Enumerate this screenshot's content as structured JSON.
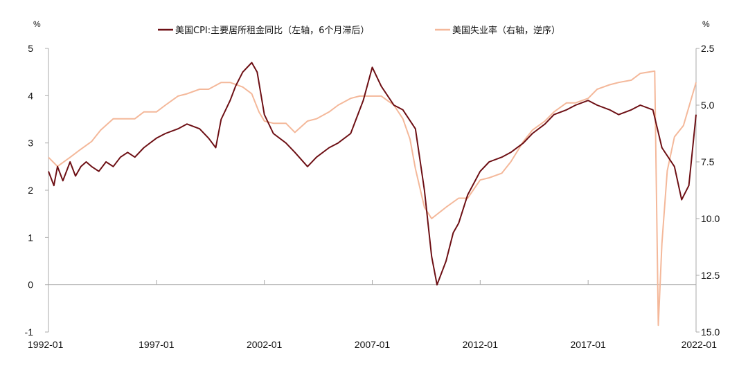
{
  "chart_data": {
    "type": "line",
    "left_unit": "%",
    "right_unit": "%",
    "x_tick_labels": [
      "1992-01",
      "1997-01",
      "2002-01",
      "2007-01",
      "2012-01",
      "2017-01",
      "2022-01"
    ],
    "x_range": [
      1992.0,
      2022.0
    ],
    "ylim_left": [
      -1,
      5
    ],
    "left_ticks": [
      "-1",
      "0",
      "1",
      "2",
      "3",
      "4",
      "5"
    ],
    "ylim_right": [
      2.5,
      15.0
    ],
    "right_axis_inverted": true,
    "right_ticks": [
      "2.5",
      "5.0",
      "7.5",
      "10.0",
      "12.5",
      "15.0"
    ],
    "grid": false,
    "legend_position": "top-center",
    "series": [
      {
        "name": "美国CPI:主要居所租金同比（左轴，6个月滞后）",
        "axis": "left",
        "color": "#6d0f14",
        "x": [
          "1992-01",
          "1992-04",
          "1992-06",
          "1992-09",
          "1993-01",
          "1993-04",
          "1993-07",
          "1993-10",
          "1994-01",
          "1994-05",
          "1994-09",
          "1995-01",
          "1995-05",
          "1995-09",
          "1996-01",
          "1996-06",
          "1997-01",
          "1997-06",
          "1998-01",
          "1998-06",
          "1999-01",
          "1999-06",
          "1999-10",
          "2000-01",
          "2000-06",
          "2000-09",
          "2001-01",
          "2001-06",
          "2001-09",
          "2002-01",
          "2002-06",
          "2003-01",
          "2003-06",
          "2004-01",
          "2004-06",
          "2005-01",
          "2005-06",
          "2006-01",
          "2006-04",
          "2006-08",
          "2007-01",
          "2007-06",
          "2008-01",
          "2008-06",
          "2009-01",
          "2009-06",
          "2009-10",
          "2010-01",
          "2010-06",
          "2010-10",
          "2011-01",
          "2011-06",
          "2012-01",
          "2012-06",
          "2013-01",
          "2013-06",
          "2014-01",
          "2014-06",
          "2015-01",
          "2015-06",
          "2016-01",
          "2016-06",
          "2017-01",
          "2017-06",
          "2018-01",
          "2018-06",
          "2019-01",
          "2019-06",
          "2020-01",
          "2020-06",
          "2021-01",
          "2021-05",
          "2021-09",
          "2022-01"
        ],
        "y": [
          2.4,
          2.1,
          2.5,
          2.2,
          2.6,
          2.3,
          2.5,
          2.6,
          2.5,
          2.4,
          2.6,
          2.5,
          2.7,
          2.8,
          2.7,
          2.9,
          3.1,
          3.2,
          3.3,
          3.4,
          3.3,
          3.1,
          2.9,
          3.5,
          3.9,
          4.2,
          4.5,
          4.7,
          4.5,
          3.6,
          3.2,
          3.0,
          2.8,
          2.5,
          2.7,
          2.9,
          3.0,
          3.2,
          3.5,
          3.9,
          4.6,
          4.2,
          3.8,
          3.7,
          3.3,
          2.0,
          0.6,
          0.0,
          0.5,
          1.1,
          1.3,
          1.9,
          2.4,
          2.6,
          2.7,
          2.8,
          3.0,
          3.2,
          3.4,
          3.6,
          3.7,
          3.8,
          3.9,
          3.8,
          3.7,
          3.6,
          3.7,
          3.8,
          3.7,
          2.9,
          2.5,
          1.8,
          2.1,
          3.6
        ]
      },
      {
        "name": "美国失业率（右轴，逆序）",
        "axis": "right",
        "color": "#f4b89a",
        "x": [
          "1992-01",
          "1992-06",
          "1993-01",
          "1993-06",
          "1994-01",
          "1994-06",
          "1995-01",
          "1995-06",
          "1996-01",
          "1996-06",
          "1997-01",
          "1997-06",
          "1998-01",
          "1998-06",
          "1999-01",
          "1999-06",
          "2000-01",
          "2000-06",
          "2001-01",
          "2001-06",
          "2001-10",
          "2002-01",
          "2002-06",
          "2003-01",
          "2003-06",
          "2004-01",
          "2004-06",
          "2005-01",
          "2005-06",
          "2006-01",
          "2006-06",
          "2007-01",
          "2007-06",
          "2008-01",
          "2008-06",
          "2008-10",
          "2009-01",
          "2009-06",
          "2009-10",
          "2010-06",
          "2011-01",
          "2011-06",
          "2012-01",
          "2012-06",
          "2013-01",
          "2013-06",
          "2014-01",
          "2014-06",
          "2015-01",
          "2015-06",
          "2016-01",
          "2016-06",
          "2017-01",
          "2017-06",
          "2018-01",
          "2018-06",
          "2019-01",
          "2019-06",
          "2020-02",
          "2020-04",
          "2020-06",
          "2020-09",
          "2021-01",
          "2021-06",
          "2022-01"
        ],
        "y": [
          7.3,
          7.7,
          7.3,
          7.0,
          6.6,
          6.1,
          5.6,
          5.6,
          5.6,
          5.3,
          5.3,
          5.0,
          4.6,
          4.5,
          4.3,
          4.3,
          4.0,
          4.0,
          4.2,
          4.5,
          5.3,
          5.7,
          5.8,
          5.8,
          6.2,
          5.7,
          5.6,
          5.3,
          5.0,
          4.7,
          4.6,
          4.6,
          4.6,
          5.0,
          5.6,
          6.5,
          7.8,
          9.5,
          10.0,
          9.5,
          9.1,
          9.1,
          8.3,
          8.2,
          8.0,
          7.5,
          6.6,
          6.1,
          5.7,
          5.3,
          4.9,
          4.9,
          4.7,
          4.3,
          4.1,
          4.0,
          3.9,
          3.6,
          3.5,
          14.7,
          11.1,
          7.9,
          6.4,
          5.9,
          4.0
        ]
      }
    ]
  }
}
